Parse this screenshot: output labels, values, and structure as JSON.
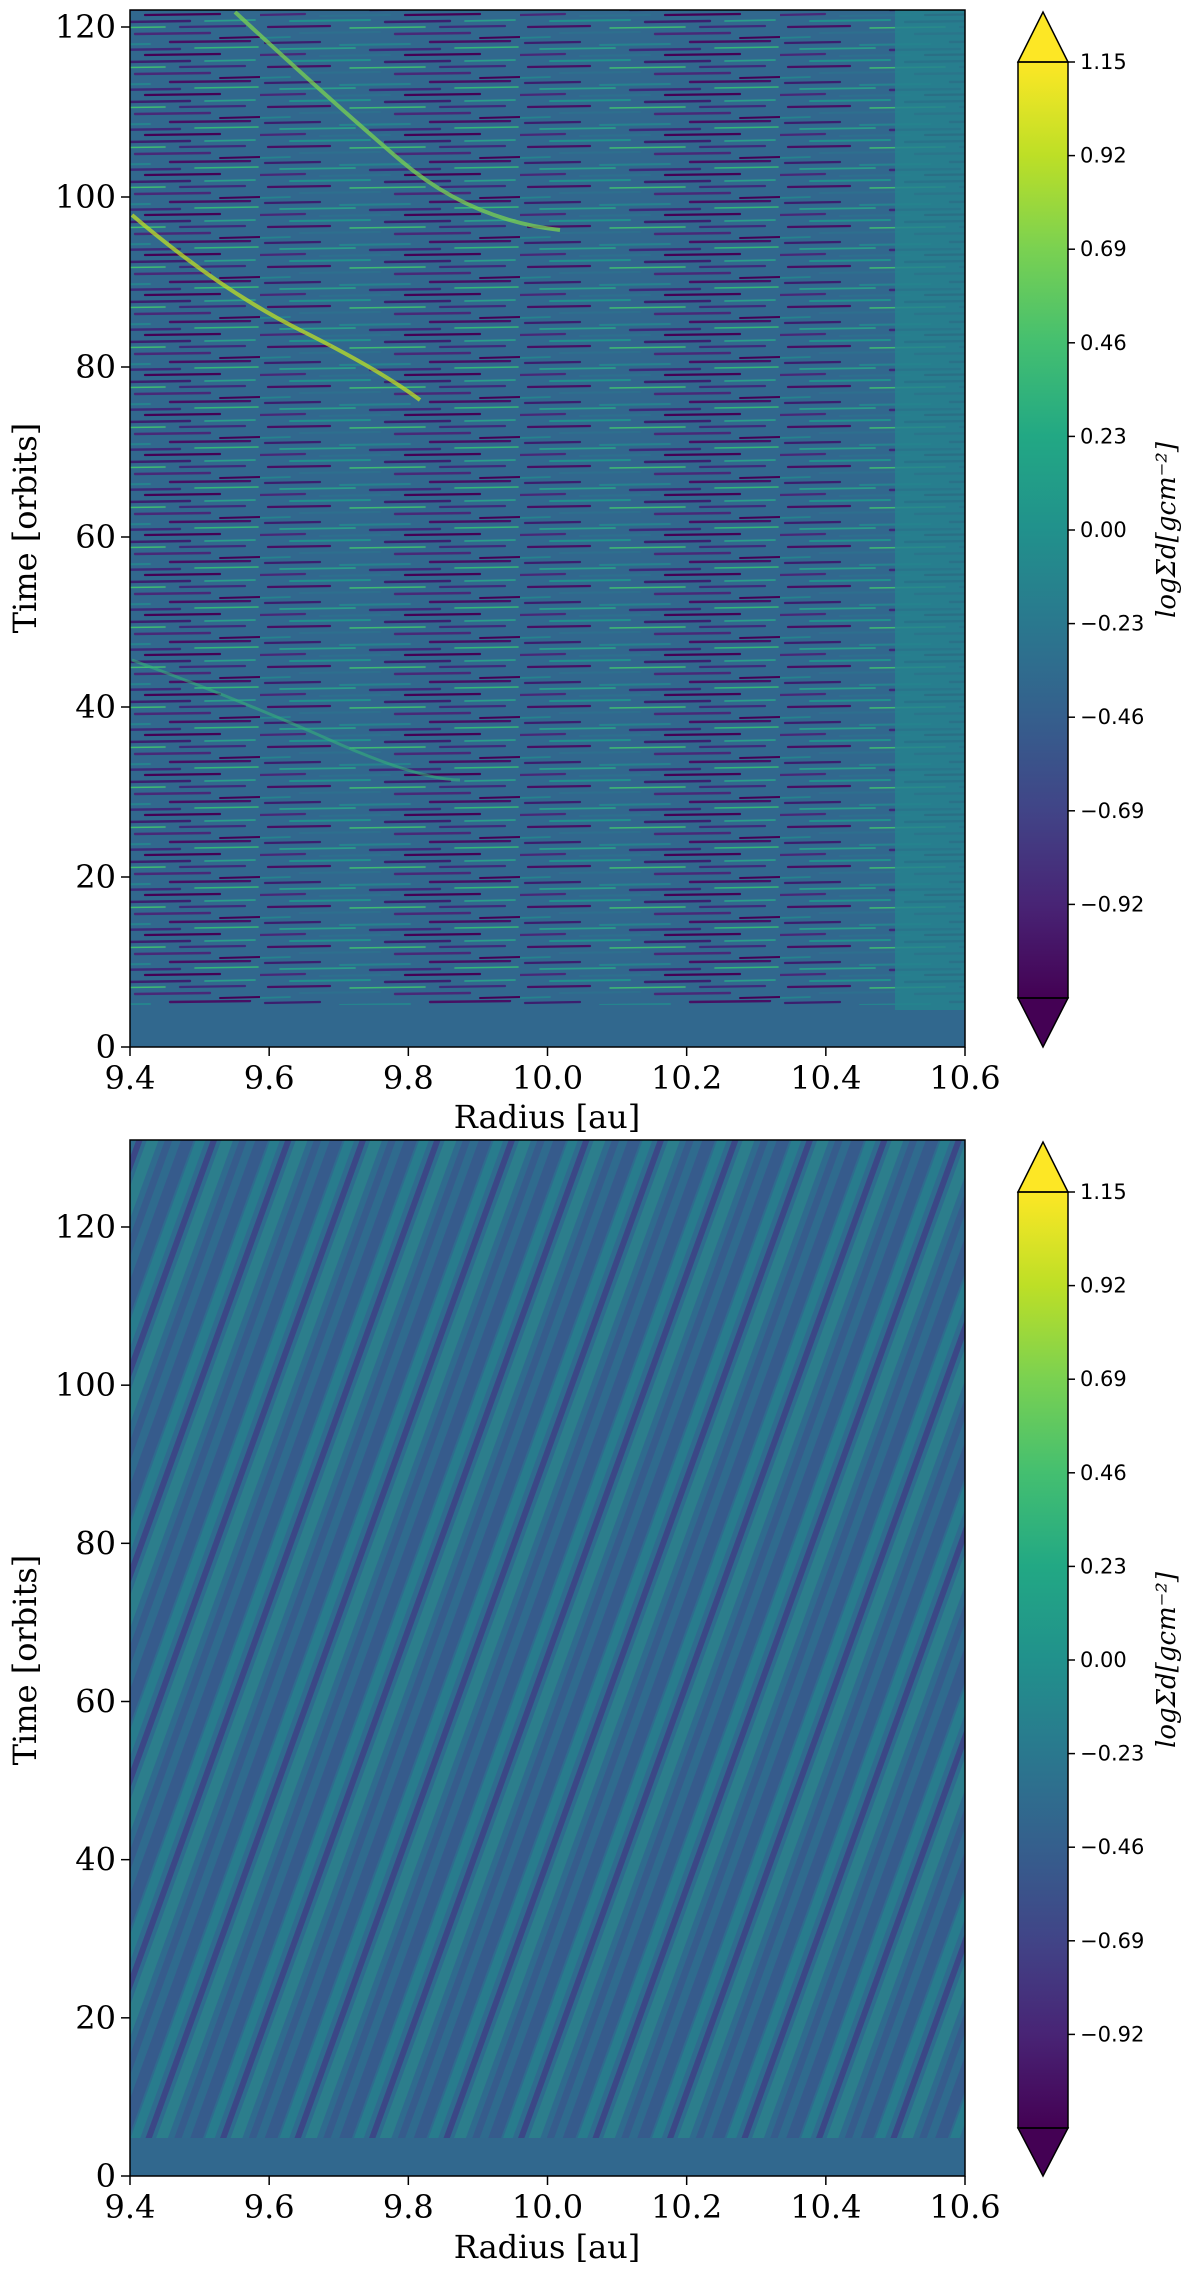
{
  "colors": {
    "viridis_dark": "#440154",
    "viridis_mid": "#21918c",
    "viridis_light": "#fde725",
    "background": "#ffffff",
    "axis": "#000000"
  },
  "chart_data": [
    {
      "type": "heatmap",
      "xlabel": "Radius [au]",
      "ylabel": "Time [orbits]",
      "xlim": [
        9.4,
        10.6
      ],
      "ylim": [
        0,
        122
      ],
      "x_ticks": [
        "9.4",
        "9.6",
        "9.8",
        "10.0",
        "10.2",
        "10.4",
        "10.6"
      ],
      "x_tick_values": [
        9.4,
        9.6,
        9.8,
        10.0,
        10.2,
        10.4,
        10.6
      ],
      "y_ticks": [
        "0",
        "20",
        "40",
        "60",
        "80",
        "100",
        "120"
      ],
      "y_tick_values": [
        0,
        20,
        40,
        60,
        80,
        100,
        120
      ],
      "colorbar": {
        "label": "logΣd[gcm⁻²]",
        "extend": "both",
        "colormap": "viridis",
        "range": [
          -1.15,
          1.15
        ],
        "ticks": [
          "1.15",
          "0.92",
          "0.69",
          "0.46",
          "0.23",
          "0.00",
          "−0.23",
          "−0.46",
          "−0.69",
          "−0.92"
        ],
        "tick_values": [
          1.15,
          0.92,
          0.69,
          0.46,
          0.23,
          0.0,
          -0.23,
          -0.46,
          -0.69,
          -0.92
        ]
      }
    },
    {
      "type": "heatmap",
      "xlabel": "Radius [au]",
      "ylabel": "Time [orbits]",
      "xlim": [
        9.4,
        10.6
      ],
      "ylim": [
        0,
        131
      ],
      "x_ticks": [
        "9.4",
        "9.6",
        "9.8",
        "10.0",
        "10.2",
        "10.4",
        "10.6"
      ],
      "x_tick_values": [
        9.4,
        9.6,
        9.8,
        10.0,
        10.2,
        10.4,
        10.6
      ],
      "y_ticks": [
        "0",
        "20",
        "40",
        "60",
        "80",
        "100",
        "120"
      ],
      "y_tick_values": [
        0,
        20,
        40,
        60,
        80,
        100,
        120
      ],
      "colorbar": {
        "label": "logΣd[gcm⁻²]",
        "extend": "both",
        "colormap": "viridis",
        "range": [
          -1.15,
          1.15
        ],
        "ticks": [
          "1.15",
          "0.92",
          "0.69",
          "0.46",
          "0.23",
          "0.00",
          "−0.23",
          "−0.46",
          "−0.69",
          "−0.92"
        ],
        "tick_values": [
          1.15,
          0.92,
          0.69,
          0.46,
          0.23,
          0.0,
          -0.23,
          -0.46,
          -0.69,
          -0.92
        ]
      }
    }
  ]
}
